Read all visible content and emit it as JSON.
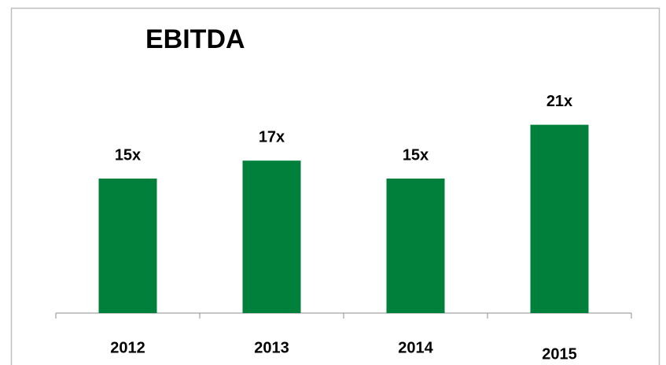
{
  "chart_data": {
    "type": "bar",
    "title": "EBITDA",
    "categories": [
      "2012",
      "2013",
      "2014",
      "2015"
    ],
    "values": [
      15,
      17,
      15,
      21
    ],
    "value_labels": [
      "15x",
      "17x",
      "15x",
      "21x"
    ],
    "color": "#00803a"
  }
}
